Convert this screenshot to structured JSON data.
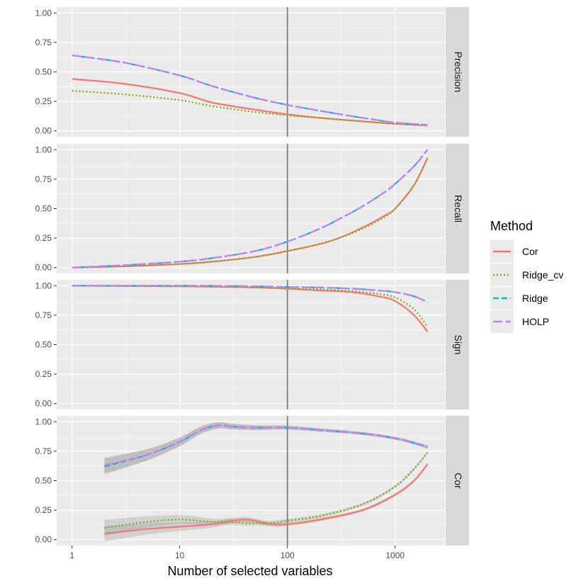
{
  "chart_data": {
    "type": "line",
    "xlabel": "Number of selected variables",
    "ylabel": "",
    "x_scale": "log10",
    "xlim": [
      0.72,
      2900
    ],
    "x_ticks": [
      1,
      10,
      100,
      1000
    ],
    "x_tick_labels": [
      "1",
      "10",
      "100",
      "1000"
    ],
    "ylim": [
      -0.05,
      1.05
    ],
    "y_ticks": [
      0,
      0.25,
      0.5,
      0.75,
      1
    ],
    "y_tick_labels": [
      "0.00",
      "0.25",
      "0.50",
      "0.75",
      "1.00"
    ],
    "vline_x": 100,
    "legend": {
      "title": "Method",
      "position": "right",
      "entries": [
        {
          "name": "Cor",
          "color": "#F8766D",
          "dash": "solid"
        },
        {
          "name": "Ridge_cv",
          "color": "#7CAE00",
          "dash": "dotted"
        },
        {
          "name": "Ridge",
          "color": "#00BFC4",
          "dash": "dashed"
        },
        {
          "name": "HOLP",
          "color": "#C77CFF",
          "dash": "longdash"
        }
      ]
    },
    "panels": [
      {
        "label": "Precision",
        "series": [
          {
            "name": "Cor",
            "x": [
              1,
              3,
              10,
              20,
              50,
              100,
              200,
              500,
              1000,
              2000
            ],
            "values": [
              0.44,
              0.4,
              0.32,
              0.24,
              0.18,
              0.14,
              0.11,
              0.08,
              0.06,
              0.045
            ]
          },
          {
            "name": "Ridge_cv",
            "x": [
              1,
              3,
              10,
              20,
              50,
              100,
              200,
              500,
              1000,
              2000
            ],
            "values": [
              0.34,
              0.31,
              0.26,
              0.21,
              0.16,
              0.13,
              0.11,
              0.08,
              0.06,
              0.045
            ]
          },
          {
            "name": "Ridge",
            "x": [
              1,
              3,
              10,
              20,
              50,
              100,
              200,
              500,
              1000,
              2000
            ],
            "values": [
              0.64,
              0.58,
              0.47,
              0.38,
              0.28,
              0.22,
              0.17,
              0.11,
              0.07,
              0.05
            ]
          },
          {
            "name": "HOLP",
            "x": [
              1,
              3,
              10,
              20,
              50,
              100,
              200,
              500,
              1000,
              2000
            ],
            "values": [
              0.64,
              0.58,
              0.47,
              0.38,
              0.28,
              0.22,
              0.17,
              0.11,
              0.07,
              0.05
            ]
          }
        ]
      },
      {
        "label": "Recall",
        "series": [
          {
            "name": "Cor",
            "x": [
              1,
              3,
              10,
              20,
              50,
              100,
              200,
              300,
              500,
              800,
              1000,
              1500,
              2000
            ],
            "values": [
              0.0,
              0.01,
              0.03,
              0.05,
              0.09,
              0.14,
              0.2,
              0.25,
              0.34,
              0.44,
              0.5,
              0.7,
              0.93
            ]
          },
          {
            "name": "Ridge_cv",
            "x": [
              1,
              3,
              10,
              20,
              50,
              100,
              200,
              300,
              500,
              800,
              1000,
              1500,
              2000
            ],
            "values": [
              0.0,
              0.01,
              0.03,
              0.05,
              0.09,
              0.14,
              0.2,
              0.25,
              0.33,
              0.43,
              0.5,
              0.7,
              0.93
            ]
          },
          {
            "name": "Ridge",
            "x": [
              1,
              3,
              10,
              20,
              50,
              100,
              200,
              300,
              500,
              800,
              1000,
              1500,
              2000
            ],
            "values": [
              0.0,
              0.02,
              0.05,
              0.08,
              0.14,
              0.22,
              0.33,
              0.41,
              0.52,
              0.64,
              0.71,
              0.86,
              1.0
            ]
          },
          {
            "name": "HOLP",
            "x": [
              1,
              3,
              10,
              20,
              50,
              100,
              200,
              300,
              500,
              800,
              1000,
              1500,
              2000
            ],
            "values": [
              0.0,
              0.02,
              0.05,
              0.08,
              0.14,
              0.22,
              0.33,
              0.41,
              0.52,
              0.64,
              0.71,
              0.86,
              1.0
            ]
          }
        ]
      },
      {
        "label": "Sign",
        "series": [
          {
            "name": "Cor",
            "x": [
              1,
              10,
              30,
              50,
              100,
              200,
              400,
              700,
              1000,
              1500,
              2000
            ],
            "values": [
              1.0,
              0.995,
              0.99,
              0.985,
              0.975,
              0.96,
              0.945,
              0.91,
              0.87,
              0.75,
              0.61
            ]
          },
          {
            "name": "Ridge_cv",
            "x": [
              1,
              10,
              30,
              50,
              100,
              200,
              400,
              700,
              1000,
              1500,
              2000
            ],
            "values": [
              1.0,
              0.995,
              0.99,
              0.985,
              0.98,
              0.97,
              0.955,
              0.93,
              0.9,
              0.8,
              0.65
            ]
          },
          {
            "name": "Ridge",
            "x": [
              1,
              10,
              30,
              50,
              100,
              200,
              400,
              700,
              1000,
              1500,
              2000
            ],
            "values": [
              1.0,
              1.0,
              0.998,
              0.995,
              0.99,
              0.985,
              0.975,
              0.96,
              0.945,
              0.91,
              0.86
            ]
          },
          {
            "name": "HOLP",
            "x": [
              1,
              10,
              30,
              50,
              100,
              200,
              400,
              700,
              1000,
              1500,
              2000
            ],
            "values": [
              1.0,
              1.0,
              0.998,
              0.995,
              0.99,
              0.985,
              0.975,
              0.96,
              0.945,
              0.91,
              0.86
            ]
          }
        ]
      },
      {
        "label": "Cor",
        "series": [
          {
            "name": "Cor",
            "x": [
              2,
              5,
              10,
              20,
              30,
              40,
              50,
              70,
              100,
              200,
              500,
              1000,
              1500,
              2000
            ],
            "values": [
              0.05,
              0.09,
              0.11,
              0.13,
              0.16,
              0.17,
              0.16,
              0.13,
              0.13,
              0.17,
              0.25,
              0.38,
              0.5,
              0.64
            ]
          },
          {
            "name": "Ridge_cv",
            "x": [
              2,
              5,
              10,
              20,
              30,
              40,
              50,
              70,
              100,
              200,
              500,
              1000,
              1500,
              2000
            ],
            "values": [
              0.1,
              0.15,
              0.17,
              0.15,
              0.15,
              0.14,
              0.14,
              0.14,
              0.16,
              0.2,
              0.3,
              0.45,
              0.6,
              0.74
            ]
          },
          {
            "name": "Ridge",
            "x": [
              2,
              5,
              10,
              15,
              20,
              25,
              30,
              50,
              100,
              200,
              500,
              1000,
              1500,
              2000
            ],
            "values": [
              0.62,
              0.72,
              0.83,
              0.92,
              0.96,
              0.97,
              0.96,
              0.95,
              0.95,
              0.93,
              0.9,
              0.86,
              0.82,
              0.79
            ]
          },
          {
            "name": "HOLP",
            "x": [
              2,
              5,
              10,
              15,
              20,
              25,
              30,
              50,
              100,
              200,
              500,
              1000,
              1500,
              2000
            ],
            "values": [
              0.63,
              0.72,
              0.83,
              0.92,
              0.96,
              0.97,
              0.96,
              0.95,
              0.95,
              0.93,
              0.9,
              0.86,
              0.82,
              0.78
            ]
          }
        ]
      }
    ]
  }
}
